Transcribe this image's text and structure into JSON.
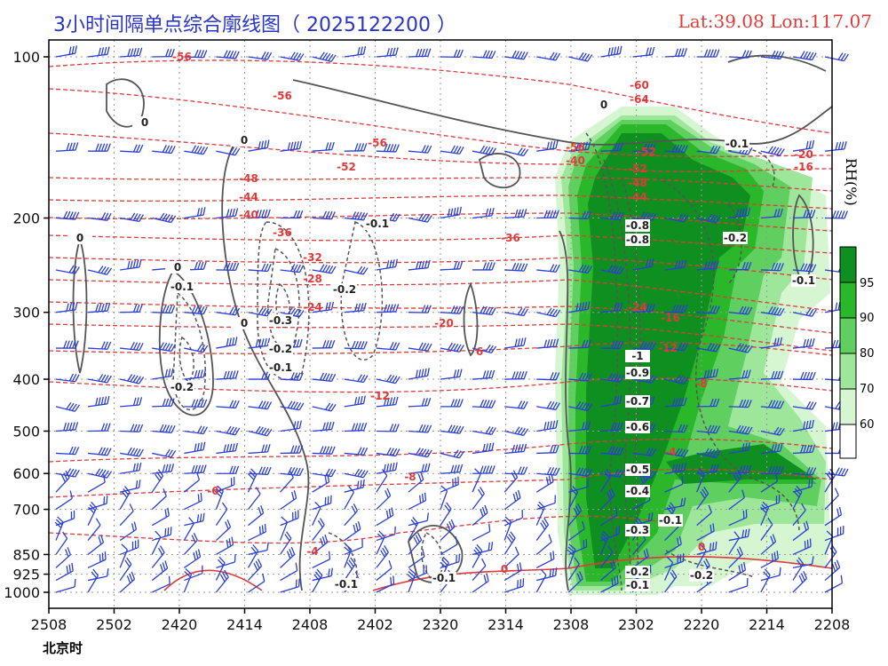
{
  "header": {
    "title": "3小时间隔单点综合廓线图（ 2025122200 ）",
    "coords": "Lat:39.08  Lon:117.07"
  },
  "timezone_label": "北京时",
  "colors": {
    "temp": "#e03a3a",
    "omega": "#555555",
    "wind": "#2a3fd8",
    "rh": [
      "#ffffff",
      "#d6f5d1",
      "#9de69a",
      "#5fd05f",
      "#2ab82a",
      "#0f8f1f"
    ]
  },
  "chart_data": {
    "type": "heatmap",
    "title": "3小时间隔单点综合廓线图（ 2025122200 ）",
    "xlabel": "北京时",
    "ylabel": "",
    "x_ticks": [
      "2508",
      "2502",
      "2420",
      "2414",
      "2408",
      "2402",
      "2320",
      "2314",
      "2308",
      "2302",
      "2220",
      "2214",
      "2208"
    ],
    "y_ticks": [
      100,
      200,
      300,
      400,
      500,
      600,
      700,
      850,
      925,
      1000
    ],
    "ylim": [
      1000,
      100
    ],
    "grid": true,
    "colorbar": {
      "label": "RH(%)",
      "ticks": [
        95,
        90,
        80,
        70,
        60
      ]
    },
    "temperature_labels": [
      "-56",
      "-56",
      "-56",
      "-52",
      "-52",
      "-48",
      "-44",
      "-40",
      "-36",
      "-36",
      "-32",
      "-28",
      "-24",
      "-24",
      "-20",
      "-16",
      "-12",
      "-12",
      "-8",
      "-8",
      "-6",
      "-4",
      "-4",
      "0",
      "0",
      "6",
      "-60",
      "-64",
      "-56",
      "-52",
      "-48",
      "-44",
      "-40",
      "-20",
      "-16",
      "-12"
    ],
    "omega_labels": [
      "0",
      "0",
      "0",
      "0",
      "-0.1",
      "-0.2",
      "-0.3",
      "-0.2",
      "-0.1",
      "0",
      "-0.2",
      "-0.1",
      "-0.1",
      "-0.1",
      "-0.8",
      "-0.8",
      "-1",
      "-0.9",
      "-0.7",
      "-0.6",
      "-0.5",
      "-0.4",
      "-0.3",
      "-0.2",
      "-0.1",
      "-0.1",
      "-0.2",
      "-0.1",
      "-0.1",
      "0",
      "-0.2"
    ]
  }
}
